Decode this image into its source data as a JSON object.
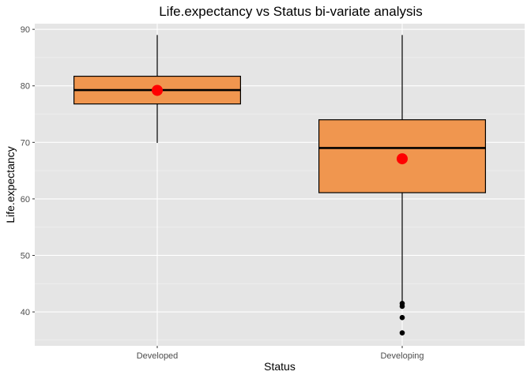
{
  "chart_data": {
    "type": "boxplot",
    "title": "Life.expectancy vs Status bi-variate analysis",
    "xlabel": "Status",
    "ylabel": "Life.expectancy",
    "ylim": [
      34,
      91
    ],
    "yticks": [
      40,
      50,
      60,
      70,
      80,
      90
    ],
    "grid": true,
    "categories": [
      "Developed",
      "Developing"
    ],
    "boxes": [
      {
        "category": "Developed",
        "whisker_low": 69.9,
        "q1": 76.8,
        "median": 79.25,
        "q3": 81.7,
        "whisker_high": 89.0,
        "mean": 79.2,
        "outliers": []
      },
      {
        "category": "Developing",
        "whisker_low": 41.8,
        "q1": 61.1,
        "median": 69.0,
        "q3": 74.0,
        "whisker_high": 89.0,
        "mean": 67.1,
        "outliers": [
          41.5,
          41.0,
          39.0,
          36.3
        ]
      }
    ],
    "colors": {
      "box_fill": "#f0964f",
      "mean_point": "#ff0000",
      "panel_bg": "#e5e5e5",
      "grid": "#ffffff"
    }
  }
}
